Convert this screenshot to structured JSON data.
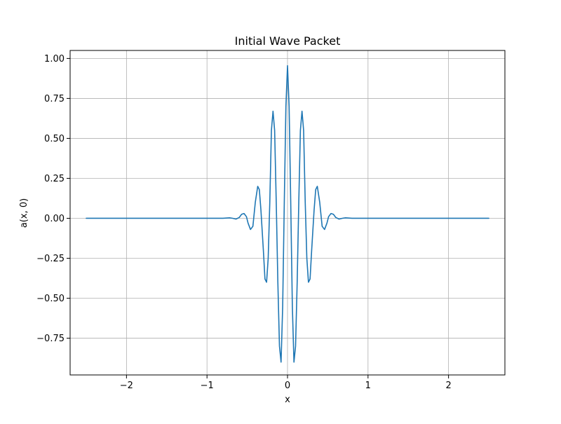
{
  "chart_data": {
    "type": "line",
    "title": "Initial Wave Packet",
    "xlabel": "x",
    "ylabel": "a(x, 0)",
    "xlim": [
      -2.7,
      2.7
    ],
    "ylim": [
      -0.98,
      1.05
    ],
    "xticks": [
      -2,
      -1,
      0,
      1,
      2
    ],
    "xtick_labels": [
      "−2",
      "−1",
      "0",
      "1",
      "2"
    ],
    "yticks": [
      -0.75,
      -0.5,
      -0.25,
      0.0,
      0.25,
      0.5,
      0.75,
      1.0
    ],
    "ytick_labels": [
      "−0.75",
      "−0.50",
      "−0.25",
      "0.00",
      "0.25",
      "0.50",
      "0.75",
      "1.00"
    ],
    "grid": true,
    "legend": null,
    "line_color": "#1f77b4",
    "series": [
      {
        "x": [
          -2.5,
          -1.0,
          -0.8,
          -0.72,
          -0.68,
          -0.64,
          -0.6,
          -0.57,
          -0.54,
          -0.51,
          -0.49,
          -0.46,
          -0.43,
          -0.4,
          -0.37,
          -0.35,
          -0.33,
          -0.3,
          -0.28,
          -0.26,
          -0.24,
          -0.22,
          -0.2,
          -0.18,
          -0.16,
          -0.14,
          -0.12,
          -0.1,
          -0.08,
          -0.06,
          -0.04,
          -0.02,
          0.0,
          0.02,
          0.04,
          0.06,
          0.08,
          0.1,
          0.12,
          0.14,
          0.16,
          0.18,
          0.2,
          0.22,
          0.24,
          0.26,
          0.28,
          0.3,
          0.33,
          0.35,
          0.37,
          0.4,
          0.43,
          0.46,
          0.49,
          0.51,
          0.54,
          0.57,
          0.6,
          0.64,
          0.68,
          0.72,
          0.8,
          1.0,
          2.5
        ],
        "y": [
          0.0,
          0.0,
          0.0,
          0.003,
          0.0,
          -0.005,
          0.005,
          0.025,
          0.03,
          0.01,
          -0.03,
          -0.07,
          -0.05,
          0.1,
          0.2,
          0.18,
          0.05,
          -0.2,
          -0.38,
          -0.4,
          -0.25,
          0.1,
          0.55,
          0.67,
          0.55,
          0.1,
          -0.4,
          -0.8,
          -0.9,
          -0.55,
          0.1,
          0.7,
          0.955,
          0.7,
          0.1,
          -0.55,
          -0.9,
          -0.8,
          -0.4,
          0.1,
          0.55,
          0.67,
          0.55,
          0.1,
          -0.25,
          -0.4,
          -0.38,
          -0.2,
          0.05,
          0.18,
          0.2,
          0.1,
          -0.05,
          -0.07,
          -0.03,
          0.01,
          0.03,
          0.025,
          0.005,
          -0.005,
          0.0,
          0.003,
          0.0,
          0.0,
          0.0
        ]
      }
    ]
  }
}
